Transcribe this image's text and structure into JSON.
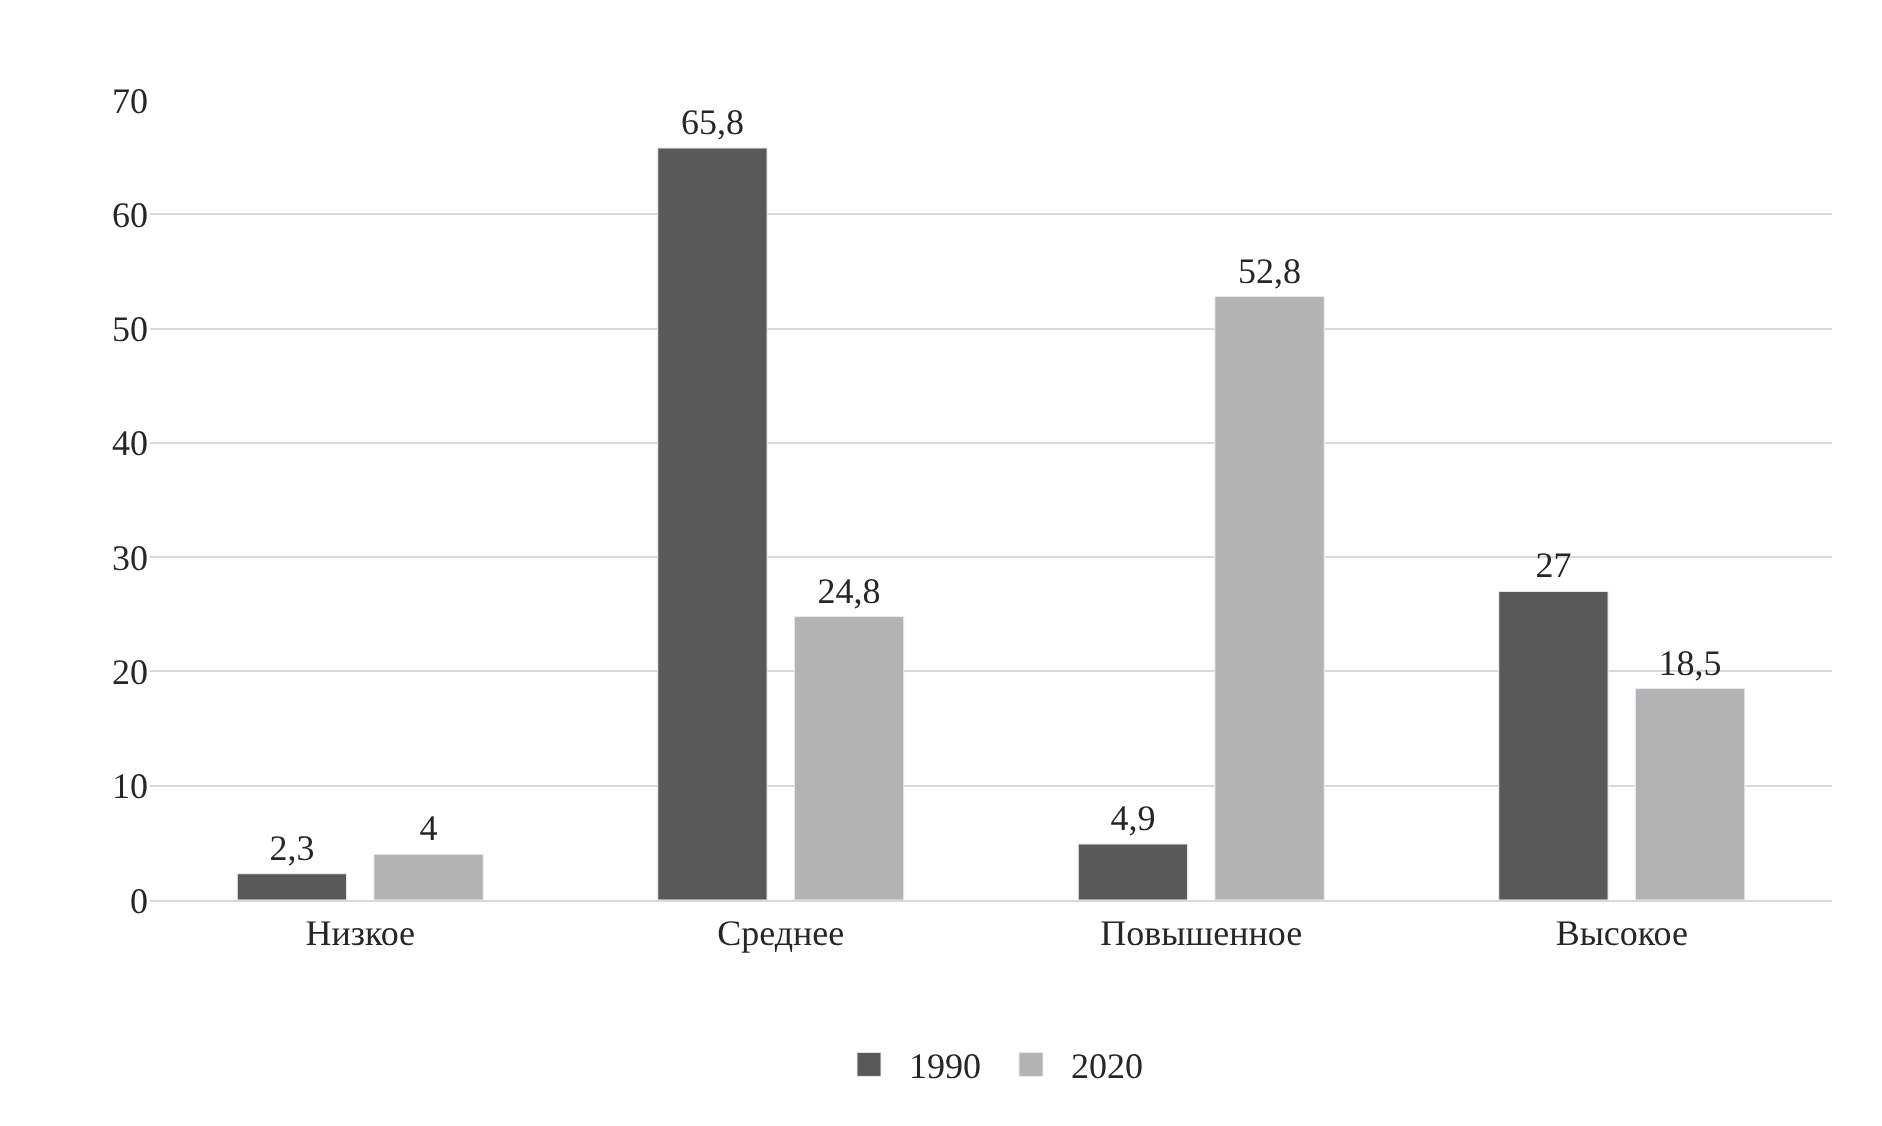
{
  "chart_data": {
    "type": "bar",
    "categories": [
      "Низкое",
      "Среднее",
      "Повышенное",
      "Высокое"
    ],
    "series": [
      {
        "name": "1990",
        "color": "#595959",
        "values": [
          2.3,
          65.8,
          4.9,
          27
        ],
        "value_labels": [
          "2,3",
          "65,8",
          "4,9",
          "27"
        ]
      },
      {
        "name": "2020",
        "color": "#b3b3b3",
        "values": [
          4,
          24.8,
          52.8,
          18.5
        ],
        "value_labels": [
          "4",
          "24,8",
          "52,8",
          "18,5"
        ]
      }
    ],
    "ylim": [
      0,
      70
    ],
    "yticks": [
      0,
      10,
      20,
      30,
      40,
      50,
      60,
      70
    ],
    "grid": "y",
    "legend": "bottom"
  }
}
